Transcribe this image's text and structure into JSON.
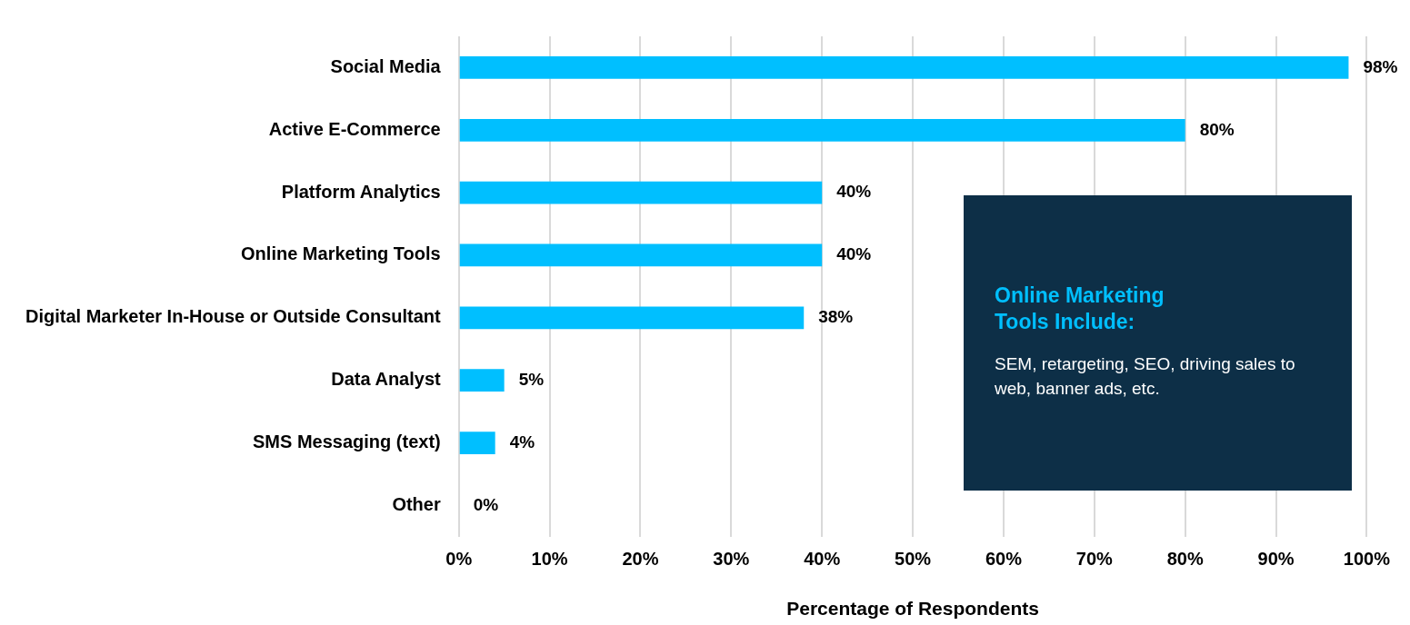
{
  "chart_data": {
    "type": "bar",
    "orientation": "horizontal",
    "xlabel": "Percentage of Respondents",
    "categories": [
      "Social Media",
      "Active E-Commerce",
      "Platform Analytics",
      "Online Marketing Tools",
      "Digital Marketer In-House or Outside Consultant",
      "Data Analyst",
      "SMS Messaging (text)",
      "Other"
    ],
    "values": [
      98,
      80,
      40,
      40,
      38,
      5,
      4,
      0
    ],
    "color": "#00bfff",
    "value_labels": [
      "98%",
      "80%",
      "40%",
      "40%",
      "38%",
      "5%",
      "4%",
      "0%"
    ],
    "xlim": [
      0,
      100
    ],
    "xticks": [
      {
        "value": 0,
        "label": "0%"
      },
      {
        "value": 10,
        "label": "10%"
      },
      {
        "value": 20,
        "label": "20%"
      },
      {
        "value": 30,
        "label": "30%"
      },
      {
        "value": 40,
        "label": "40%"
      },
      {
        "value": 50,
        "label": "50%"
      },
      {
        "value": 60,
        "label": "60%"
      },
      {
        "value": 70,
        "label": "70%"
      },
      {
        "value": 80,
        "label": "80%"
      },
      {
        "value": 90,
        "label": "90%"
      },
      {
        "value": 100,
        "label": "100%"
      }
    ],
    "grid": "x",
    "legend": false,
    "annotations": [
      "Online Marketing Tools Include:",
      "SEM, retargeting, SEO, driving sales to web, banner ads, etc."
    ]
  }
}
